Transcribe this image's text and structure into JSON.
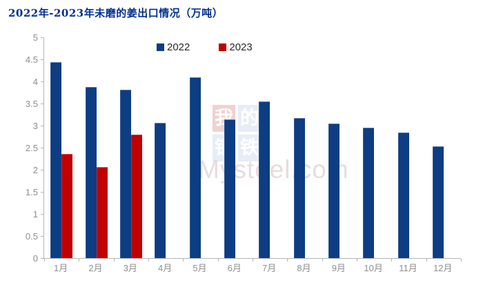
{
  "title": "2022年-2023年未磨的姜出口情况（万吨）",
  "title_color": "#00308f",
  "legend": {
    "items": [
      {
        "label": "2022",
        "color": "#0d3d82"
      },
      {
        "label": "2023",
        "color": "#c00000"
      }
    ]
  },
  "watermark": {
    "grid": [
      [
        "我",
        "的"
      ],
      [
        "钢",
        "铁"
      ]
    ],
    "site": "Mysteel.com"
  },
  "chart_data": {
    "type": "bar",
    "title": "2022年-2023年未磨的姜出口情况（万吨）",
    "categories": [
      "1月",
      "2月",
      "3月",
      "4月",
      "5月",
      "6月",
      "7月",
      "8月",
      "9月",
      "10月",
      "11月",
      "12月"
    ],
    "series": [
      {
        "name": "2022",
        "color": "#0d3d82",
        "values": [
          4.43,
          3.87,
          3.82,
          3.07,
          4.09,
          3.14,
          3.54,
          3.17,
          3.05,
          2.96,
          2.84,
          2.53
        ]
      },
      {
        "name": "2023",
        "color": "#c00000",
        "values": [
          2.36,
          2.06,
          2.8,
          null,
          null,
          null,
          null,
          null,
          null,
          null,
          null,
          null
        ]
      }
    ],
    "xlabel": "",
    "ylabel": "",
    "ylim": [
      0,
      5
    ],
    "ytick_step": 0.5,
    "y_tick_labels": [
      "0",
      "0.5",
      "1",
      "1.5",
      "2",
      "2.5",
      "3",
      "3.5",
      "4",
      "4.5",
      "5"
    ],
    "grid": false,
    "legend_position": "top-center",
    "axis_color": "#b4b4b4",
    "tick_label_color": "#8e8e8e"
  }
}
